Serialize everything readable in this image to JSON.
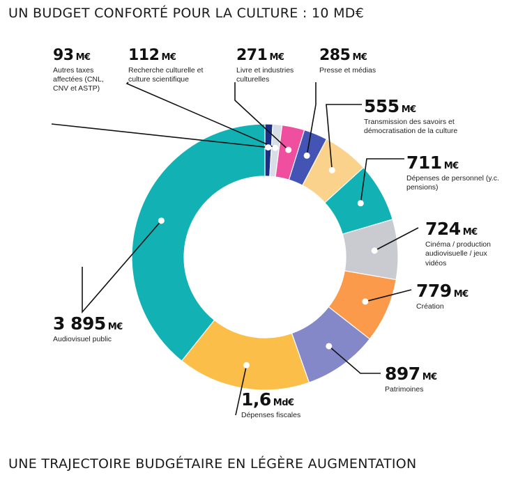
{
  "titles": {
    "main": "UN BUDGET CONFORTÉ POUR LA CULTURE : 10 MD€",
    "next": "UNE TRAJECTOIRE BUDGÉTAIRE EN LÉGÈRE AUGMENTATION"
  },
  "chart_data": {
    "type": "pie",
    "subtype": "donut",
    "title": "UN BUDGET CONFORTÉ POUR LA CULTURE : 10 MD€",
    "total_label": "10 MD€",
    "units": "M€",
    "slices": [
      {
        "key": "autres_taxes",
        "amount": 93,
        "value_label": "93",
        "unit": "M€",
        "label": "Autres taxes affectées (CNL, CNV et ASTP)",
        "color": "#1c2f86"
      },
      {
        "key": "recherche",
        "amount": 112,
        "value_label": "112",
        "unit": "M€",
        "label": "Recherche culturelle et culture scientifique",
        "color": "#d9dde8"
      },
      {
        "key": "livre",
        "amount": 271,
        "value_label": "271",
        "unit": "M€",
        "label": "Livre et industries culturelles",
        "color": "#ef4f9e"
      },
      {
        "key": "presse",
        "amount": 285,
        "value_label": "285",
        "unit": "M€",
        "label": "Presse et médias",
        "color": "#4354b4"
      },
      {
        "key": "transmission",
        "amount": 555,
        "value_label": "555",
        "unit": "M€",
        "label": "Transmission des savoirs et démocratisation de la culture",
        "color": "#fbd28c"
      },
      {
        "key": "personnel",
        "amount": 711,
        "value_label": "711",
        "unit": "M€",
        "label": "Dépenses de personnel (y.c. pensions)",
        "color": "#12b2b4"
      },
      {
        "key": "cinema",
        "amount": 724,
        "value_label": "724",
        "unit": "M€",
        "label": "Cinéma / production audiovisuelle / jeux vidéos",
        "color": "#c9cbd0"
      },
      {
        "key": "creation",
        "amount": 779,
        "value_label": "779",
        "unit": "M€",
        "label": "Création",
        "color": "#fb9a4a"
      },
      {
        "key": "patrimoines",
        "amount": 897,
        "value_label": "897",
        "unit": "M€",
        "label": "Patrimoines",
        "color": "#8588c8"
      },
      {
        "key": "fiscales",
        "amount": 1600,
        "value_label": "1,6",
        "unit": "Md€",
        "label": "Dépenses fiscales",
        "color": "#fbbe48"
      },
      {
        "key": "audiovisuel",
        "amount": 3895,
        "value_label": "3 895",
        "unit": "M€",
        "label": "Audiovisuel public",
        "color": "#12b2b4"
      }
    ]
  }
}
